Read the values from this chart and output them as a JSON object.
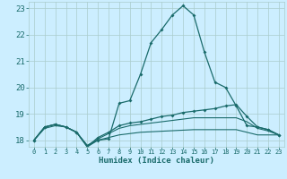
{
  "xlabel": "Humidex (Indice chaleur)",
  "bg_color": "#cceeff",
  "grid_color": "#aacccc",
  "line_color": "#1a6b6b",
  "xlim": [
    -0.5,
    23.5
  ],
  "ylim": [
    17.75,
    23.25
  ],
  "xticks": [
    0,
    1,
    2,
    3,
    4,
    5,
    6,
    7,
    8,
    9,
    10,
    11,
    12,
    13,
    14,
    15,
    16,
    17,
    18,
    19,
    20,
    21,
    22,
    23
  ],
  "yticks": [
    18,
    19,
    20,
    21,
    22,
    23
  ],
  "line1_x": [
    0,
    1,
    2,
    3,
    4,
    5,
    6,
    7,
    8,
    9,
    10,
    11,
    12,
    13,
    14,
    15,
    16,
    17,
    18,
    19,
    20,
    21,
    22,
    23
  ],
  "line1_y": [
    18.0,
    18.5,
    18.6,
    18.5,
    18.3,
    17.75,
    18.0,
    18.05,
    19.4,
    19.5,
    20.5,
    21.7,
    22.2,
    22.75,
    23.1,
    22.75,
    21.35,
    20.2,
    20.0,
    19.3,
    18.55,
    18.5,
    18.4,
    18.2
  ],
  "line2_x": [
    0,
    1,
    2,
    3,
    4,
    5,
    6,
    7,
    8,
    9,
    10,
    11,
    12,
    13,
    14,
    15,
    16,
    17,
    18,
    19,
    20,
    21,
    22,
    23
  ],
  "line2_y": [
    18.0,
    18.5,
    18.6,
    18.5,
    18.3,
    17.75,
    18.1,
    18.3,
    18.55,
    18.65,
    18.7,
    18.8,
    18.9,
    18.95,
    19.05,
    19.1,
    19.15,
    19.2,
    19.3,
    19.35,
    18.9,
    18.5,
    18.4,
    18.2
  ],
  "line3_x": [
    0,
    1,
    2,
    3,
    4,
    5,
    6,
    7,
    8,
    9,
    10,
    11,
    12,
    13,
    14,
    15,
    16,
    17,
    18,
    19,
    20,
    21,
    22,
    23
  ],
  "line3_y": [
    18.0,
    18.5,
    18.6,
    18.5,
    18.3,
    17.8,
    18.05,
    18.25,
    18.45,
    18.55,
    18.6,
    18.65,
    18.7,
    18.75,
    18.8,
    18.85,
    18.85,
    18.85,
    18.85,
    18.85,
    18.7,
    18.45,
    18.35,
    18.2
  ],
  "line4_x": [
    0,
    1,
    2,
    3,
    4,
    5,
    6,
    7,
    8,
    9,
    10,
    11,
    12,
    13,
    14,
    15,
    16,
    17,
    18,
    19,
    20,
    21,
    22,
    23
  ],
  "line4_y": [
    18.0,
    18.45,
    18.55,
    18.5,
    18.3,
    17.8,
    18.0,
    18.1,
    18.2,
    18.25,
    18.3,
    18.32,
    18.34,
    18.36,
    18.38,
    18.4,
    18.4,
    18.4,
    18.4,
    18.4,
    18.3,
    18.2,
    18.2,
    18.2
  ]
}
